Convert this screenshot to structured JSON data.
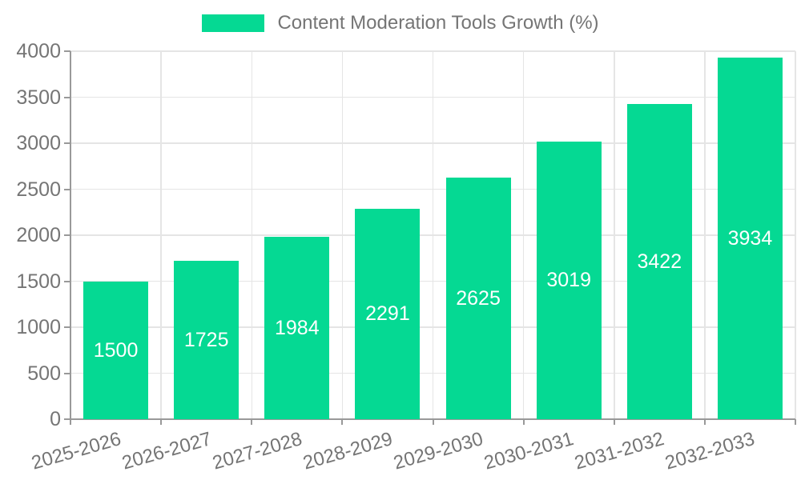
{
  "chart_data": {
    "type": "bar",
    "title": "Content Moderation Tools Growth (%)",
    "legend": {
      "label": "Content Moderation Tools Growth (%)",
      "position": "top-center"
    },
    "categories": [
      "2025-2026",
      "2026-2027",
      "2027-2028",
      "2028-2029",
      "2029-2030",
      "2030-2031",
      "2031-2032",
      "2032-2033"
    ],
    "series": [
      {
        "name": "Content Moderation Tools Growth (%)",
        "values": [
          1500,
          1725,
          1984,
          2291,
          2625,
          3019,
          3422,
          3934
        ]
      }
    ],
    "value_labels": [
      "1500",
      "1725",
      "1984",
      "2291",
      "2625",
      "3019",
      "3422",
      "3934"
    ],
    "xlabel": "",
    "ylabel": "",
    "ylim": [
      0,
      4000
    ],
    "yticks": [
      0,
      500,
      1000,
      1500,
      2000,
      2500,
      3000,
      3500,
      4000
    ],
    "ytick_labels": [
      "0",
      "500",
      "1000",
      "1500",
      "2000",
      "2500",
      "3000",
      "3500",
      "4000"
    ],
    "grid": "on",
    "colors": {
      "bar": "#05d993",
      "value_label": "#ffffff",
      "grid": "#e5e5e5",
      "axis": "#999999",
      "tick_label": "#757575",
      "legend_text": "#757575",
      "background": "#ffffff"
    }
  }
}
